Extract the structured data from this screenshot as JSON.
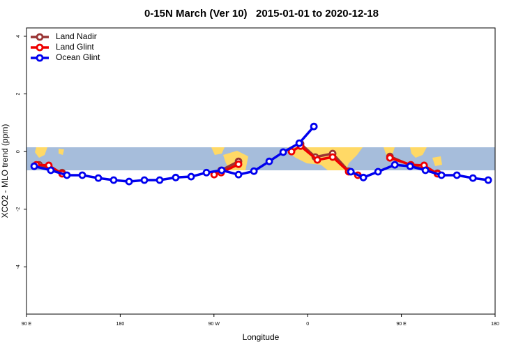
{
  "chart_data": {
    "type": "line",
    "title": "0-15N March (Ver 10)   2015-01-01 to 2020-12-18",
    "x_label": "Longitude",
    "y_label": "XCO2 - MLO trend (ppm)",
    "xlim": [
      90,
      540
    ],
    "xticks": [
      {
        "value": 90,
        "label": "90 E"
      },
      180,
      {
        "value": 270,
        "label": "90 W"
      },
      {
        "value": 360,
        "label": "0"
      },
      {
        "value": 450,
        "label": "90 E"
      },
      {
        "value": 540,
        "label": "180"
      }
    ],
    "ylim": [
      -5.64,
      4.29
    ],
    "yticks": [
      -4,
      -2,
      0,
      2,
      4
    ],
    "legend": "top-left",
    "series": [
      {
        "name": "Land Nadir",
        "color": "#993333",
        "x": [
          102,
          124.2,
          null,
          276.9,
          293.6,
          null,
          353.2,
          367.3,
          384,
          399.4,
          null,
          439,
          459.1,
          484.6
        ],
        "values": [
          -0.46,
          -0.73,
          null,
          -0.65,
          -0.34,
          null,
          0.27,
          -0.19,
          -0.07,
          -0.68,
          null,
          -0.17,
          -0.48,
          -0.75
        ]
      },
      {
        "name": "Land Glint",
        "color": "#ee0000",
        "x": [
          99.4,
          111.4,
          124.2,
          null,
          270.2,
          276.9,
          293.6,
          null,
          344.5,
          353.2,
          369.3,
          384,
          399.4,
          408.2,
          null,
          439,
          459.1,
          471.8,
          484.6
        ],
        "values": [
          -0.46,
          -0.48,
          -0.77,
          null,
          -0.8,
          -0.73,
          -0.44,
          null,
          0.0,
          0.19,
          -0.29,
          -0.19,
          -0.7,
          -0.82,
          null,
          -0.22,
          -0.46,
          -0.48,
          -0.77
        ]
      },
      {
        "name": "Ocean Glint",
        "color": "#0000ee",
        "x": [
          97.4,
          113.4,
          128.8,
          143.6,
          159,
          173.7,
          188.5,
          203.2,
          217.9,
          233.3,
          248.1,
          262.8,
          277.5,
          293.6,
          308.4,
          323.1,
          336.5,
          351.9,
          366,
          null,
          401.5,
          413.5,
          427.6,
          443.7,
          458.4,
          473.1,
          488.5,
          503.3,
          518.7,
          533.4
        ],
        "values": [
          -0.51,
          -0.65,
          -0.82,
          -0.82,
          -0.92,
          -0.99,
          -1.04,
          -0.99,
          -0.99,
          -0.9,
          -0.87,
          -0.73,
          -0.65,
          -0.8,
          -0.68,
          -0.34,
          -0.02,
          0.29,
          0.87,
          null,
          -0.7,
          -0.9,
          -0.7,
          -0.46,
          -0.51,
          -0.65,
          -0.82,
          -0.82,
          -0.92,
          -0.99
        ]
      }
    ]
  }
}
